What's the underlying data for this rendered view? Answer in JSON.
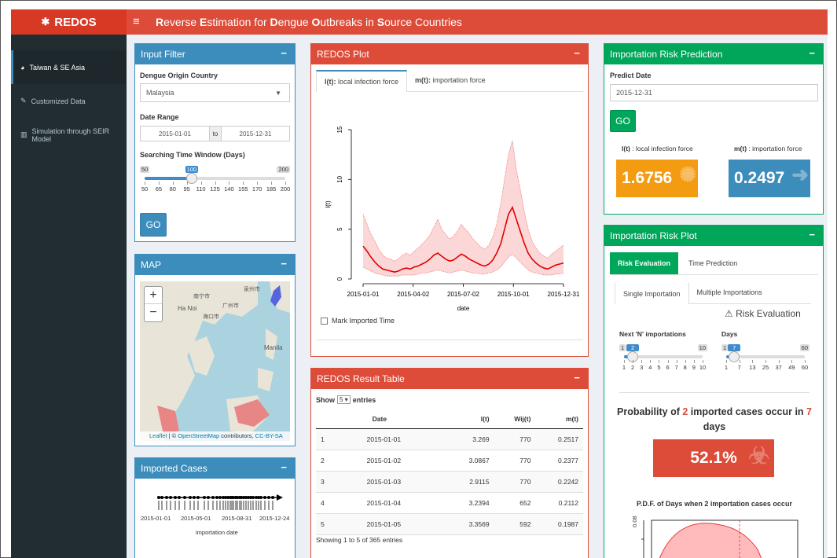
{
  "header": {
    "logo": "REDOS",
    "title_parts": [
      [
        "R",
        "everse "
      ],
      [
        "E",
        "stimation for "
      ],
      [
        "D",
        "engue "
      ],
      [
        "O",
        "utbreaks in "
      ],
      [
        "S",
        "ource Countries"
      ]
    ]
  },
  "sidebar": {
    "items": [
      {
        "label": "Taiwan & SE Asia",
        "icon": "globe-icon"
      },
      {
        "label": "Customized Data",
        "icon": "edit-icon"
      },
      {
        "label": "Simulation through SEIR Model",
        "icon": "bar-chart-icon"
      }
    ]
  },
  "input_filter": {
    "title": "Input Filter",
    "country_label": "Dengue Origin Country",
    "country_value": "Malaysia",
    "date_label": "Date Range",
    "date_from": "2015-01-01",
    "date_sep": "to",
    "date_to": "2015-12-31",
    "window_label": "Searching Time Window (Days)",
    "slider": {
      "min": 50,
      "max": 200,
      "value": 100,
      "min_label": "50",
      "max_label": "200",
      "value_label": "100",
      "ticks": [
        "50",
        "65",
        "80",
        "95",
        "110",
        "125",
        "140",
        "155",
        "170",
        "185",
        "200"
      ]
    },
    "go": "GO"
  },
  "map": {
    "title": "MAP",
    "zoom_in": "+",
    "zoom_out": "−",
    "attrib_leaflet": "Leaflet",
    "attrib_mid": " | © ",
    "attrib_osm": "OpenStreetMap",
    "attrib_contrib": " contributors, ",
    "attrib_cc": "CC-BY-SA",
    "labels": [
      "南宁市",
      "广州市",
      "泉州市",
      "Ha Noi",
      "海口市",
      "Manila"
    ]
  },
  "imported": {
    "title": "Imported Cases",
    "ticks": [
      "2015-01-01",
      "2015-05-01",
      "2015-08-31",
      "2015-12-24"
    ],
    "xlabel": "importation date"
  },
  "redos_plot": {
    "title": "REDOS Plot",
    "tab1_b": "l(t):",
    "tab1": " local infection force",
    "tab2_b": "m(t):",
    "tab2": " importation force",
    "checkbox": "Mark Imported Time"
  },
  "chart_data": {
    "type": "line",
    "ylabel": "l(t)",
    "xlabel": "date",
    "ylim": [
      0,
      15
    ],
    "yticks": [
      "0",
      "5",
      "10",
      "15"
    ],
    "xticks": [
      "2015-01-01",
      "2015-04-02",
      "2015-07-02",
      "2015-10-01",
      "2015-12-31"
    ],
    "series": [
      {
        "values": [
          3.3,
          2.8,
          2.2,
          1.7,
          1.3,
          1.0,
          0.9,
          0.8,
          0.7,
          0.8,
          1.0,
          1.1,
          1.0,
          1.2,
          1.3,
          1.5,
          1.7,
          2.0,
          2.4,
          2.6,
          2.3,
          2.0,
          1.8,
          1.9,
          2.2,
          2.5,
          2.3,
          2.0,
          1.8,
          1.6,
          1.4,
          1.3,
          1.5,
          1.9,
          2.6,
          3.5,
          5.0,
          6.5,
          7.2,
          6.0,
          4.8,
          3.6,
          2.6,
          2.0,
          1.6,
          1.3,
          1.1,
          1.0,
          1.2,
          1.4,
          1.5,
          1.6
        ]
      },
      {
        "values": [
          6.5,
          5.5,
          4.5,
          3.8,
          3.0,
          2.4,
          2.1,
          2.0,
          1.8,
          2.0,
          2.4,
          2.6,
          2.4,
          2.8,
          3.1,
          3.5,
          3.9,
          4.4,
          5.2,
          6.0,
          5.0,
          4.5,
          4.0,
          4.3,
          4.8,
          5.5,
          5.0,
          4.6,
          4.0,
          3.6,
          3.2,
          3.0,
          3.4,
          4.2,
          5.5,
          7.5,
          10.0,
          12.5,
          13.9,
          11.0,
          9.0,
          6.8,
          5.0,
          3.8,
          3.1,
          2.6,
          2.3,
          2.1,
          2.5,
          2.8,
          3.1,
          3.4
        ]
      },
      {
        "values": [
          1.2,
          1.0,
          0.8,
          0.6,
          0.5,
          0.4,
          0.3,
          0.3,
          0.3,
          0.3,
          0.4,
          0.4,
          0.4,
          0.4,
          0.5,
          0.6,
          0.6,
          0.7,
          0.8,
          0.9,
          0.8,
          0.7,
          0.6,
          0.7,
          0.8,
          0.9,
          0.8,
          0.7,
          0.6,
          0.6,
          0.5,
          0.5,
          0.6,
          0.7,
          0.9,
          1.2,
          1.7,
          2.2,
          2.5,
          2.1,
          1.7,
          1.3,
          0.9,
          0.7,
          0.6,
          0.5,
          0.4,
          0.4,
          0.4,
          0.5,
          0.5,
          0.6
        ]
      }
    ]
  },
  "result_table": {
    "title": "REDOS Result Table",
    "show": "Show",
    "entries_value": "5",
    "entries": "entries",
    "headers": [
      "",
      "Date",
      "l(t)",
      "Wij(t)",
      "m(t)"
    ],
    "rows": [
      [
        "1",
        "2015-01-01",
        "3.269",
        "770",
        "0.2517"
      ],
      [
        "2",
        "2015-01-02",
        "3.0867",
        "770",
        "0.2377"
      ],
      [
        "3",
        "2015-01-03",
        "2.9115",
        "770",
        "0.2242"
      ],
      [
        "4",
        "2015-01-04",
        "3.2394",
        "652",
        "0.2112"
      ],
      [
        "5",
        "2015-01-05",
        "3.3569",
        "592",
        "0.1987"
      ]
    ],
    "footer": "Showing 1 to 5 of 365 entries"
  },
  "prediction": {
    "title": "Importation Risk Prediction",
    "date_label": "Predict Date",
    "date_value": "2015-12-31",
    "go": "GO",
    "lt_b": "l(t)",
    "lt": " : local infection force",
    "mt_b": "m(t)",
    "mt": " : importation force",
    "lt_value": "1.6756",
    "mt_value": "0.2497",
    "lt_color": "#f39c12",
    "mt_color": "#3c8dbc"
  },
  "risk_plot": {
    "title": "Importation Risk Plot",
    "tab1": "Risk Evaluation",
    "tab2": "Time Prediction",
    "subtab1": "Single Importation",
    "subtab2": "Multiple Importations",
    "heading": "Risk Evaluation",
    "n_label": "Next 'N' importations",
    "n_slider": {
      "min": 1,
      "max": 10,
      "value": 2,
      "min_label": "1",
      "max_label": "10",
      "value_label": "2",
      "ticks": [
        "1",
        "2",
        "3",
        "4",
        "5",
        "6",
        "7",
        "8",
        "9",
        "10"
      ]
    },
    "days_label": "Days",
    "days_slider": {
      "min": 1,
      "max": 60,
      "value": 7,
      "min_label": "1",
      "max_label": "60",
      "value_label": "7",
      "ticks": [
        "1",
        "7",
        "13",
        "25",
        "37",
        "49",
        "60"
      ]
    },
    "prob_pre": "Probability of ",
    "prob_n": "2",
    "prob_mid": " imported cases occur in ",
    "prob_d": "7",
    "prob_post": " days",
    "prob_value": "52.1%",
    "prob_color": "#dd4b39",
    "pdf_title": "P.D.F. of Days when 2 importation cases occur",
    "pdf_ytick": "0.08"
  }
}
